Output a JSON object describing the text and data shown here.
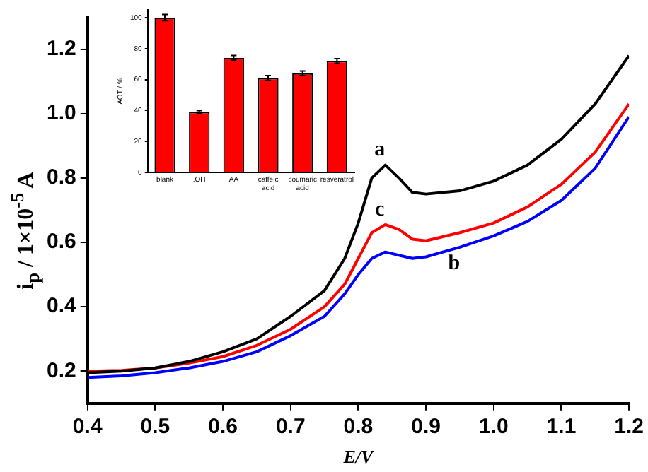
{
  "chart_data": [
    {
      "type": "line",
      "xlabel": "E/V",
      "ylabel": "i$_{p}$ / 1×10$^{-5}$ A",
      "xlim": [
        0.4,
        1.2
      ],
      "xticks": [
        0.4,
        0.5,
        0.6,
        0.7,
        0.8,
        0.9,
        {
          "value": 1,
          "label": "1.0"
        },
        1.1,
        1.2
      ],
      "ylim": [
        0.1,
        1.3
      ],
      "yticks": [
        0.2,
        0.4,
        0.6,
        0.8,
        {
          "value": 1,
          "label": "1.0"
        },
        1.2
      ],
      "grid": false,
      "legend": false,
      "x": [
        0.4,
        0.45,
        0.5,
        0.55,
        0.6,
        0.65,
        0.7,
        0.75,
        0.78,
        0.8,
        0.82,
        0.84,
        0.86,
        0.88,
        0.9,
        0.95,
        1.0,
        1.05,
        1.1,
        1.15,
        1.2
      ],
      "series": [
        {
          "name": "a",
          "color": "#000000",
          "values": [
            0.195,
            0.2,
            0.21,
            0.23,
            0.26,
            0.3,
            0.37,
            0.45,
            0.55,
            0.66,
            0.8,
            0.84,
            0.8,
            0.755,
            0.75,
            0.76,
            0.79,
            0.84,
            0.92,
            1.03,
            1.18
          ]
        },
        {
          "name": "c",
          "color": "#ff0000",
          "values": [
            0.2,
            0.202,
            0.21,
            0.225,
            0.245,
            0.28,
            0.33,
            0.4,
            0.47,
            0.55,
            0.63,
            0.655,
            0.64,
            0.61,
            0.605,
            0.63,
            0.66,
            0.71,
            0.78,
            0.88,
            1.03
          ]
        },
        {
          "name": "b",
          "color": "#0000ff",
          "values": [
            0.18,
            0.185,
            0.195,
            0.21,
            0.23,
            0.26,
            0.31,
            0.37,
            0.44,
            0.5,
            0.55,
            0.57,
            0.56,
            0.55,
            0.555,
            0.585,
            0.62,
            0.665,
            0.73,
            0.83,
            0.99
          ]
        }
      ]
    },
    {
      "type": "bar",
      "ylabel": "AOT / %",
      "categories": [
        "blank",
        ".OH",
        "AA",
        "caffeic acid",
        "coumaric acid",
        "resveratrol"
      ],
      "values": [
        100,
        39,
        74,
        61,
        64,
        72
      ],
      "errors": [
        2,
        1,
        1.5,
        1.5,
        1.5,
        1.5
      ],
      "color": "#ff0000",
      "ylim": [
        0,
        105
      ],
      "yticks": [
        0,
        20,
        40,
        60,
        80,
        100
      ],
      "grid": false,
      "legend": false
    }
  ]
}
